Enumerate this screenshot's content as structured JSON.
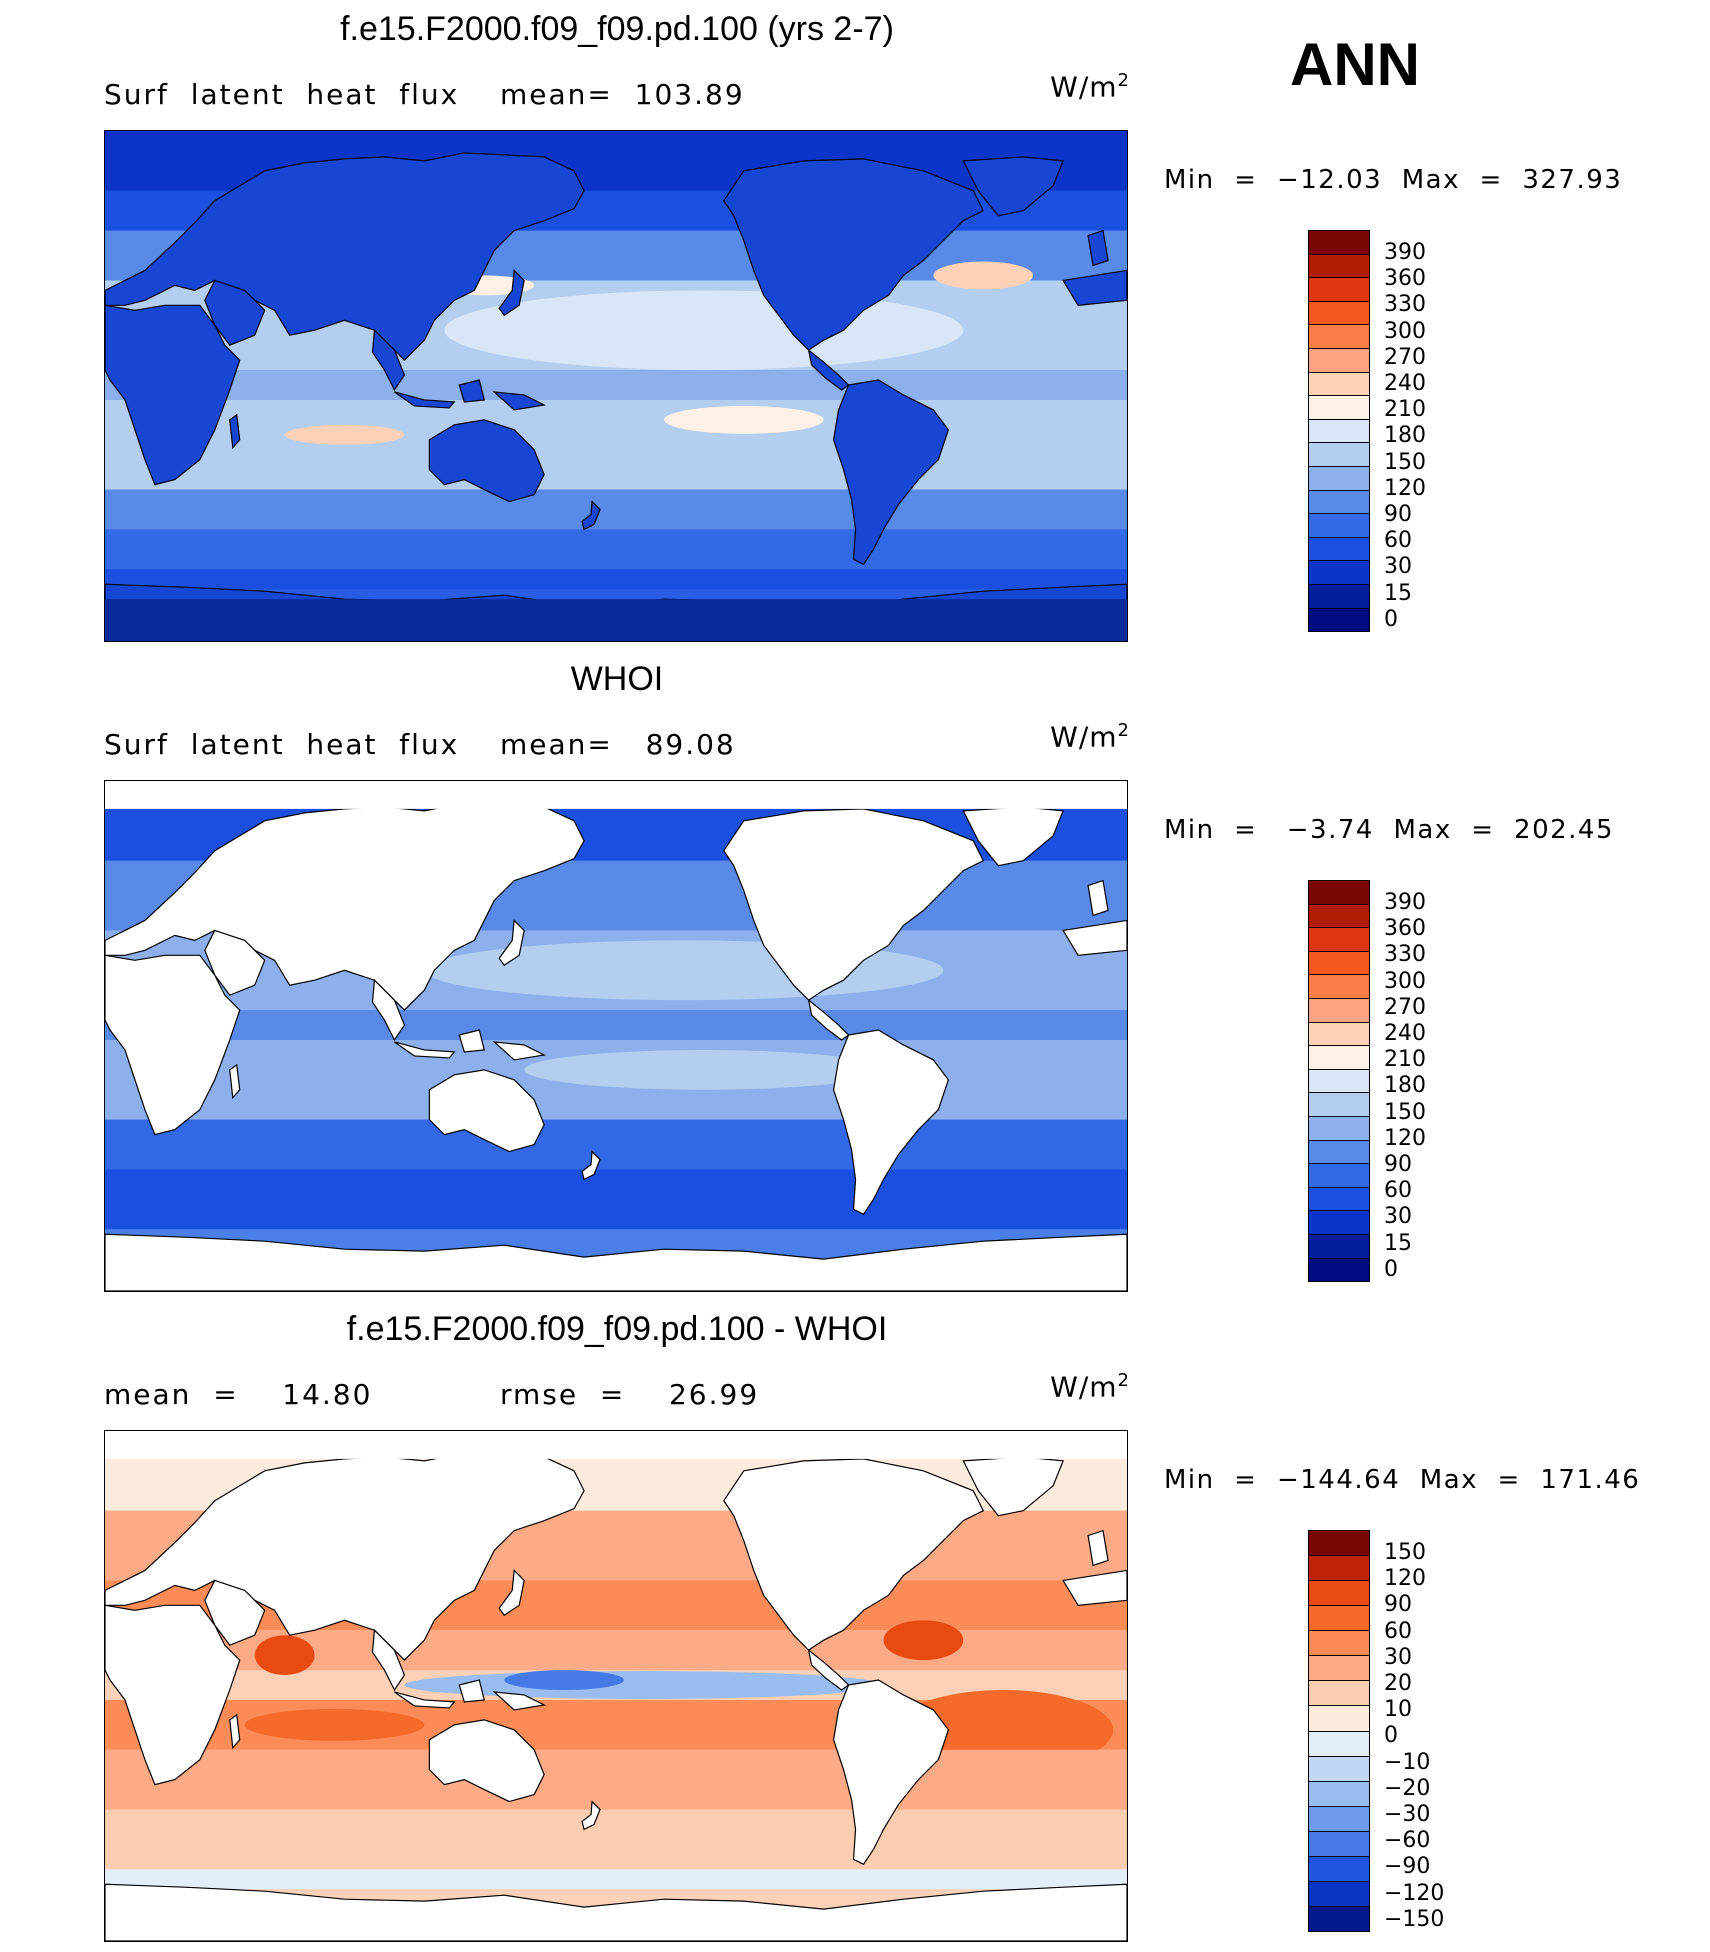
{
  "season": "ANN",
  "panels": [
    {
      "title": "f.e15.F2000.f09_f09.pd.100 (yrs 2-7)",
      "subtitle_left": "Surf  latent  heat  flux",
      "subtitle_mid": "mean=  103.89",
      "units": "W/m",
      "units_exp": "2",
      "minmax": "Min  =  −12.03  Max  =  327.93",
      "colorbar": {
        "colors": [
          "#7a0505",
          "#b01d05",
          "#e0360f",
          "#f5571e",
          "#fb7e48",
          "#fca383",
          "#fdd1b7",
          "#fdf0e6",
          "#d8e6f8",
          "#b3ceee",
          "#8db0ec",
          "#5a8ae8",
          "#3368e6",
          "#1a4fe0",
          "#0b35c8",
          "#031f9a",
          "#000c80"
        ],
        "labels": [
          "390",
          "360",
          "330",
          "300",
          "270",
          "240",
          "210",
          "180",
          "150",
          "120",
          "90",
          "60",
          "30",
          "15",
          "0"
        ]
      },
      "map": {
        "background": "#2a5de6",
        "land_fill": "#1846d4",
        "antarctica_fill": "#0a2a9a"
      }
    },
    {
      "title": "WHOI",
      "subtitle_left": "Surf  latent  heat  flux",
      "subtitle_mid": "mean=   89.08",
      "units": "W/m",
      "units_exp": "2",
      "minmax": "Min  =   −3.74  Max  =  202.45",
      "colorbar": {
        "colors": [
          "#7a0505",
          "#b01d05",
          "#e0360f",
          "#f5571e",
          "#fb7e48",
          "#fca383",
          "#fdd1b7",
          "#fdf0e6",
          "#d8e6f8",
          "#b3ceee",
          "#8db0ec",
          "#5a8ae8",
          "#3368e6",
          "#1a4fe0",
          "#0b35c8",
          "#031f9a",
          "#000c80"
        ],
        "labels": [
          "390",
          "360",
          "330",
          "300",
          "270",
          "240",
          "210",
          "180",
          "150",
          "120",
          "90",
          "60",
          "30",
          "15",
          "0"
        ]
      },
      "map": {
        "background": "#4b7fe8",
        "land_fill": "#ffffff",
        "antarctica_fill": "#ffffff"
      }
    },
    {
      "title": "f.e15.F2000.f09_f09.pd.100 - WHOI",
      "subtitle_left": "mean  =    14.80",
      "subtitle_mid": "rmse  =    26.99",
      "units": "W/m",
      "units_exp": "2",
      "minmax": "Min  =  −144.64  Max  =  171.46",
      "colorbar": {
        "colors": [
          "#7a0505",
          "#c02408",
          "#e84a12",
          "#f56a2a",
          "#fb8c57",
          "#fcab86",
          "#fdcdb2",
          "#fdebdd",
          "#e3eefb",
          "#c0d7f4",
          "#99bdf0",
          "#6e9cea",
          "#4479e6",
          "#1f55e0",
          "#0a35c4",
          "#001a8c"
        ],
        "labels": [
          "150",
          "120",
          "90",
          "60",
          "30",
          "20",
          "10",
          "0",
          "−10",
          "−20",
          "−30",
          "−60",
          "−90",
          "−120",
          "−150"
        ]
      },
      "map": {
        "background": "#fdd1b7",
        "land_fill": "#ffffff",
        "antarctica_fill": "#ffffff"
      }
    }
  ]
}
